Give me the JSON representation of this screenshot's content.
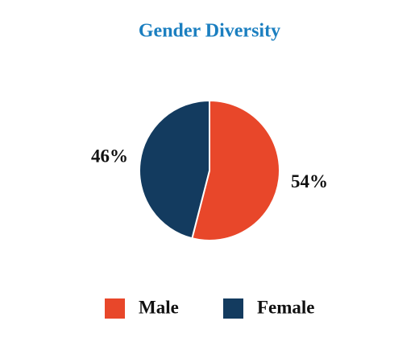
{
  "chart_data": {
    "type": "pie",
    "title": "Gender Diversity",
    "categories": [
      "Male",
      "Female"
    ],
    "values": [
      54,
      46
    ],
    "value_labels": [
      "54%",
      "46%"
    ],
    "colors": [
      "#e8472a",
      "#133b5f"
    ],
    "legend": "bottom"
  }
}
